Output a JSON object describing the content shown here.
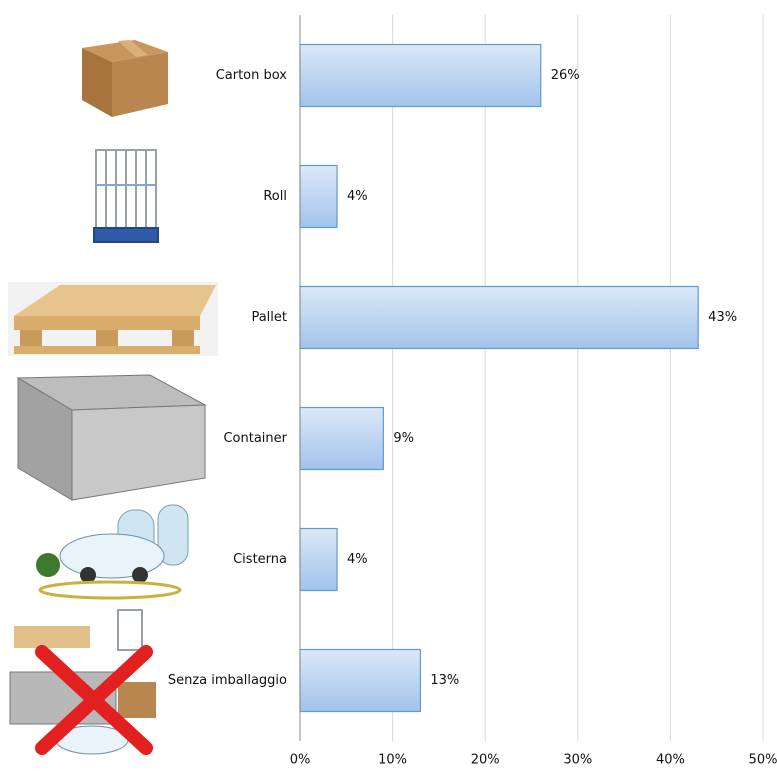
{
  "chart_data": {
    "type": "hbar",
    "categories": [
      "Carton box",
      "Roll",
      "Pallet",
      "Container",
      "Cisterna",
      "Senza imballaggio"
    ],
    "values": [
      26,
      4,
      43,
      9,
      4,
      13
    ],
    "value_labels": [
      "26%",
      "4%",
      "43%",
      "9%",
      "4%",
      "13%"
    ],
    "color": "#a3c3ea",
    "xlim": [
      0,
      50
    ],
    "xticks": [
      {
        "value": 0,
        "label": "0%"
      },
      {
        "value": 10,
        "label": "10%"
      },
      {
        "value": 20,
        "label": "20%"
      },
      {
        "value": 30,
        "label": "30%"
      },
      {
        "value": 40,
        "label": "40%"
      },
      {
        "value": 50,
        "label": "50%"
      }
    ],
    "grid": true
  }
}
